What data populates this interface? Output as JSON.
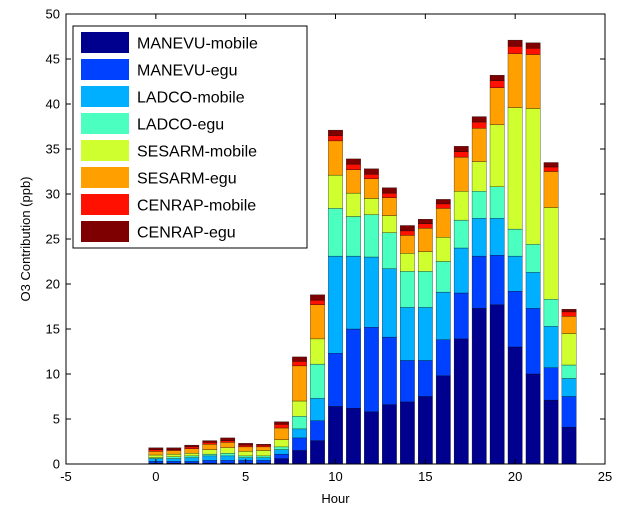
{
  "chart_data": {
    "type": "bar",
    "stacked": true,
    "title": "",
    "xlabel": "Hour",
    "ylabel": "O3 Contribution (ppb)",
    "xlim": [
      -5,
      25
    ],
    "ylim": [
      0,
      50
    ],
    "xticks": [
      -5,
      0,
      5,
      10,
      15,
      20,
      25
    ],
    "yticks": [
      0,
      5,
      10,
      15,
      20,
      25,
      30,
      35,
      40,
      45,
      50
    ],
    "grid": false,
    "legend_position": "top-left",
    "x": [
      0,
      1,
      2,
      3,
      4,
      5,
      6,
      7,
      8,
      9,
      10,
      11,
      12,
      13,
      14,
      15,
      16,
      17,
      18,
      19,
      20,
      21,
      22,
      23
    ],
    "series": [
      {
        "name": "MANEVU-mobile",
        "color": "#00008f",
        "values": [
          0.1,
          0.1,
          0.1,
          0.1,
          0.1,
          0.1,
          0.1,
          0.6,
          1.5,
          2.6,
          6.4,
          6.2,
          5.8,
          6.6,
          6.9,
          7.5,
          9.8,
          13.9,
          17.3,
          17.7,
          13.0,
          10.0,
          7.1,
          4.1
        ]
      },
      {
        "name": "MANEVU-egu",
        "color": "#0040ff",
        "values": [
          0.2,
          0.2,
          0.2,
          0.3,
          0.3,
          0.3,
          0.3,
          0.5,
          1.4,
          2.2,
          5.9,
          8.8,
          9.4,
          7.5,
          4.6,
          4.0,
          4.0,
          5.1,
          5.8,
          5.5,
          6.2,
          7.3,
          3.6,
          3.4
        ]
      },
      {
        "name": "LADCO-mobile",
        "color": "#00afff",
        "values": [
          0.3,
          0.3,
          0.4,
          0.5,
          0.5,
          0.3,
          0.3,
          0.5,
          1.0,
          2.5,
          10.8,
          8.1,
          7.8,
          7.6,
          5.9,
          5.9,
          5.3,
          5.0,
          4.2,
          4.1,
          3.9,
          4.0,
          4.6,
          2.0
        ]
      },
      {
        "name": "LADCO-egu",
        "color": "#4affbf",
        "values": [
          0.1,
          0.2,
          0.2,
          0.2,
          0.3,
          0.2,
          0.2,
          0.3,
          1.4,
          3.8,
          5.3,
          4.4,
          4.7,
          4.0,
          4.0,
          4.0,
          3.4,
          3.1,
          3.0,
          3.5,
          3.0,
          3.1,
          3.0,
          1.5
        ]
      },
      {
        "name": "SESARM-mobile",
        "color": "#cfff2f",
        "values": [
          0.3,
          0.3,
          0.3,
          0.5,
          0.6,
          0.5,
          0.6,
          0.8,
          1.7,
          2.8,
          3.7,
          2.6,
          1.8,
          1.9,
          2.0,
          2.2,
          2.7,
          3.2,
          3.3,
          6.9,
          13.5,
          15.1,
          10.2,
          3.5
        ]
      },
      {
        "name": "SESARM-egu",
        "color": "#ffa000",
        "values": [
          0.4,
          0.4,
          0.5,
          0.6,
          0.6,
          0.5,
          0.4,
          1.3,
          3.9,
          3.8,
          3.8,
          2.6,
          2.2,
          2.0,
          2.0,
          2.6,
          3.2,
          3.8,
          3.7,
          4.1,
          6.0,
          6.0,
          4.0,
          1.9
        ]
      },
      {
        "name": "CENRAP-mobile",
        "color": "#ff1000",
        "values": [
          0.2,
          0.1,
          0.2,
          0.2,
          0.2,
          0.2,
          0.2,
          0.4,
          0.5,
          0.5,
          0.6,
          0.6,
          0.5,
          0.5,
          0.5,
          0.5,
          0.5,
          0.6,
          0.7,
          0.8,
          0.8,
          0.7,
          0.5,
          0.5
        ]
      },
      {
        "name": "CENRAP-egu",
        "color": "#7f0000",
        "values": [
          0.2,
          0.2,
          0.2,
          0.2,
          0.3,
          0.2,
          0.1,
          0.3,
          0.5,
          0.6,
          0.6,
          0.6,
          0.6,
          0.6,
          0.6,
          0.5,
          0.5,
          0.6,
          0.6,
          0.6,
          0.7,
          0.6,
          0.5,
          0.3
        ]
      }
    ]
  }
}
